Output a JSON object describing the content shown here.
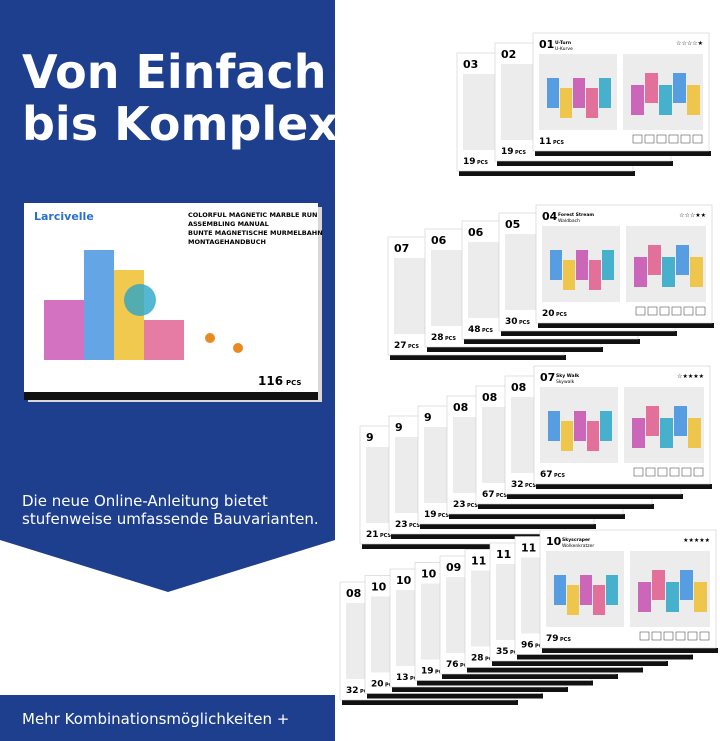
{
  "headline": [
    "Von Einfach",
    "bis Komplex"
  ],
  "manual": {
    "brand": "Larcivelle",
    "lines": [
      "COLORFUL MAGNETIC MARBLE RUN",
      "ASSEMBLING MANUAL",
      "BUNTE MAGNETISCHE MURMELBAHN",
      "MONTAGEHANDBUCH"
    ],
    "count": "116",
    "count_unit": "PCS"
  },
  "description": [
    "Die neue Online-Anleitung bietet",
    "stufenweise umfassende Bauvarianten."
  ],
  "footer": "Mehr Kombinationsmöglichkeiten +",
  "pcs_label": "PCS",
  "stacks": [
    {
      "front": {
        "num": "01",
        "title": "U-Turn",
        "subtitle": "U-Kurve",
        "pcs": "11",
        "rating": "☆☆☆☆★"
      },
      "back": [
        {
          "num": "03",
          "pcs": "19"
        },
        {
          "num": "02",
          "pcs": "19"
        }
      ]
    },
    {
      "front": {
        "num": "04",
        "title": "Forest Stream",
        "subtitle": "Waldbach",
        "pcs": "20",
        "rating": "☆☆☆★★"
      },
      "back": [
        {
          "num": "07",
          "pcs": "27"
        },
        {
          "num": "06",
          "pcs": "28"
        },
        {
          "num": "06",
          "pcs": "48"
        },
        {
          "num": "05",
          "pcs": "30"
        }
      ]
    },
    {
      "front": {
        "num": "07",
        "title": "Sky Walk",
        "subtitle": "Skywalk",
        "pcs": "67",
        "rating": "☆★★★★"
      },
      "back": [
        {
          "num": "9",
          "pcs": "21"
        },
        {
          "num": "9",
          "pcs": "23"
        },
        {
          "num": "9",
          "pcs": "19"
        },
        {
          "num": "08",
          "pcs": "23"
        },
        {
          "num": "08",
          "pcs": "67"
        },
        {
          "num": "08",
          "pcs": "32"
        }
      ]
    },
    {
      "front": {
        "num": "10",
        "title": "Skyscraper",
        "subtitle": "Wolkenkratzer",
        "pcs": "79",
        "rating": "★★★★★"
      },
      "back": [
        {
          "num": "08",
          "pcs": "32"
        },
        {
          "num": "10",
          "pcs": "20"
        },
        {
          "num": "10",
          "pcs": "13"
        },
        {
          "num": "10",
          "pcs": "19"
        },
        {
          "num": "09",
          "pcs": "76"
        },
        {
          "num": "11",
          "pcs": "28"
        },
        {
          "num": "11",
          "pcs": "35"
        },
        {
          "num": "11",
          "pcs": "96"
        }
      ]
    }
  ]
}
